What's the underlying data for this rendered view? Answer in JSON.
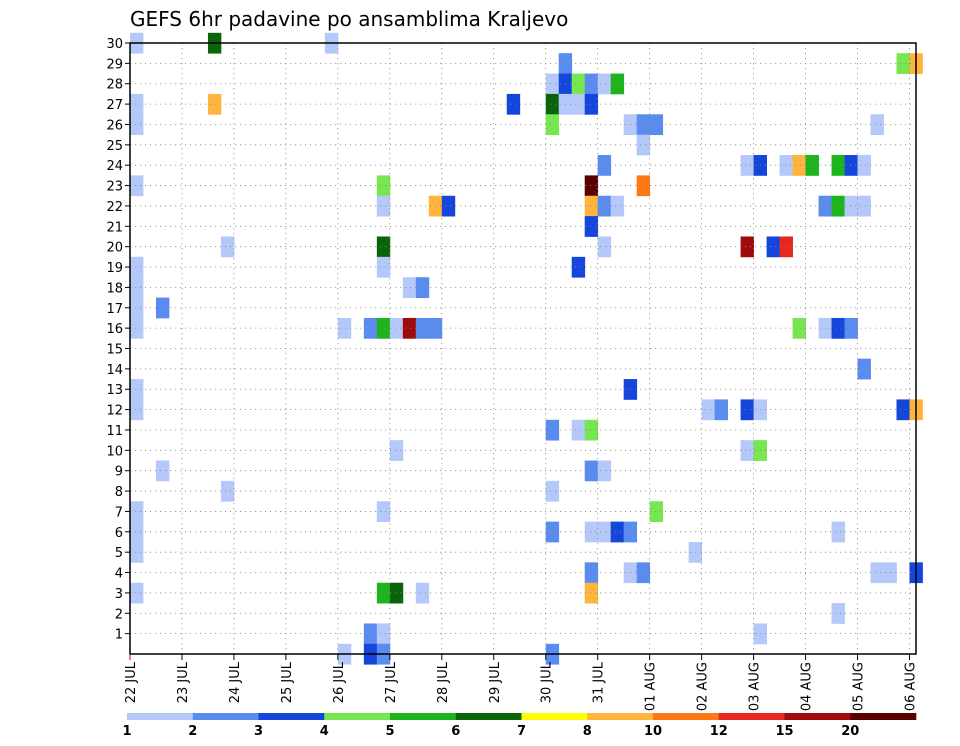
{
  "chart_data": {
    "type": "heatmap",
    "title": "GEFS 6hr padavine po ansamblima Kraljevo",
    "xlabel": "",
    "ylabel": "",
    "x_tick_labels": [
      "22 JUL",
      "23 JUL",
      "24 JUL",
      "25 JUL",
      "26 JUL",
      "27 JUL",
      "28 JUL",
      "29 JUL",
      "30 JUL",
      "31 JUL",
      "01 AUG",
      "02 AUG",
      "03 AUG",
      "04 AUG",
      "05 AUG",
      "06 AUG"
    ],
    "y_tick_labels": [
      "1",
      "2",
      "3",
      "4",
      "5",
      "6",
      "7",
      "8",
      "9",
      "10",
      "11",
      "12",
      "13",
      "14",
      "15",
      "16",
      "17",
      "18",
      "19",
      "20",
      "21",
      "22",
      "23",
      "24",
      "25",
      "26",
      "27",
      "28",
      "29",
      "30"
    ],
    "xlim_steps": [
      0,
      60
    ],
    "ylim_members": [
      0,
      30
    ],
    "legend": {
      "placement": "bottom",
      "thresholds": [
        "1",
        "2",
        "3",
        "4",
        "5",
        "6",
        "7",
        "8",
        "10",
        "12",
        "15",
        "20"
      ],
      "colors": [
        "#b4c8fa",
        "#5a8cf0",
        "#1446dc",
        "#78e650",
        "#1eb41e",
        "#0a640a",
        "#ffff00",
        "#ffb43c",
        "#ff7814",
        "#e6281e",
        "#a00a0a",
        "#5a0000"
      ]
    },
    "grid": true,
    "cells": [
      {
        "m": 30,
        "c": 0,
        "b": 0
      },
      {
        "m": 30,
        "c": 6,
        "b": 5
      },
      {
        "m": 30,
        "c": 15,
        "b": 0
      },
      {
        "m": 29,
        "c": 33,
        "b": 1
      },
      {
        "m": 29,
        "c": 59,
        "b": 3
      },
      {
        "m": 29,
        "c": 60,
        "b": 7
      },
      {
        "m": 28,
        "c": 32,
        "b": 0
      },
      {
        "m": 28,
        "c": 33,
        "b": 2
      },
      {
        "m": 28,
        "c": 34,
        "b": 3
      },
      {
        "m": 28,
        "c": 35,
        "b": 1
      },
      {
        "m": 28,
        "c": 36,
        "b": 0
      },
      {
        "m": 28,
        "c": 37,
        "b": 4
      },
      {
        "m": 27,
        "c": 0,
        "b": 0
      },
      {
        "m": 27,
        "c": 6,
        "b": 7
      },
      {
        "m": 27,
        "c": 29,
        "b": 2
      },
      {
        "m": 27,
        "c": 32,
        "b": 5
      },
      {
        "m": 27,
        "c": 33,
        "b": 0
      },
      {
        "m": 27,
        "c": 34,
        "b": 0
      },
      {
        "m": 27,
        "c": 35,
        "b": 2
      },
      {
        "m": 26,
        "c": 0,
        "b": 0
      },
      {
        "m": 26,
        "c": 32,
        "b": 3
      },
      {
        "m": 26,
        "c": 38,
        "b": 0
      },
      {
        "m": 26,
        "c": 39,
        "b": 1
      },
      {
        "m": 26,
        "c": 40,
        "b": 1
      },
      {
        "m": 26,
        "c": 57,
        "b": 0
      },
      {
        "m": 25,
        "c": 39,
        "b": 0
      },
      {
        "m": 24,
        "c": 36,
        "b": 1
      },
      {
        "m": 24,
        "c": 47,
        "b": 0
      },
      {
        "m": 24,
        "c": 48,
        "b": 2
      },
      {
        "m": 24,
        "c": 50,
        "b": 0
      },
      {
        "m": 24,
        "c": 51,
        "b": 7
      },
      {
        "m": 24,
        "c": 52,
        "b": 4
      },
      {
        "m": 24,
        "c": 54,
        "b": 4
      },
      {
        "m": 24,
        "c": 55,
        "b": 2
      },
      {
        "m": 24,
        "c": 56,
        "b": 0
      },
      {
        "m": 23,
        "c": 0,
        "b": 0
      },
      {
        "m": 23,
        "c": 19,
        "b": 3
      },
      {
        "m": 23,
        "c": 35,
        "b": 11
      },
      {
        "m": 23,
        "c": 39,
        "b": 8
      },
      {
        "m": 22,
        "c": 19,
        "b": 0
      },
      {
        "m": 22,
        "c": 23,
        "b": 7
      },
      {
        "m": 22,
        "c": 24,
        "b": 2
      },
      {
        "m": 22,
        "c": 35,
        "b": 7
      },
      {
        "m": 22,
        "c": 36,
        "b": 1
      },
      {
        "m": 22,
        "c": 37,
        "b": 0
      },
      {
        "m": 22,
        "c": 53,
        "b": 1
      },
      {
        "m": 22,
        "c": 54,
        "b": 4
      },
      {
        "m": 22,
        "c": 55,
        "b": 0
      },
      {
        "m": 22,
        "c": 56,
        "b": 0
      },
      {
        "m": 21,
        "c": 35,
        "b": 2
      },
      {
        "m": 20,
        "c": 7,
        "b": 0
      },
      {
        "m": 20,
        "c": 19,
        "b": 5
      },
      {
        "m": 20,
        "c": 36,
        "b": 0
      },
      {
        "m": 20,
        "c": 47,
        "b": 10
      },
      {
        "m": 20,
        "c": 49,
        "b": 2
      },
      {
        "m": 20,
        "c": 50,
        "b": 9
      },
      {
        "m": 19,
        "c": 0,
        "b": 0
      },
      {
        "m": 19,
        "c": 19,
        "b": 0
      },
      {
        "m": 19,
        "c": 34,
        "b": 2
      },
      {
        "m": 18,
        "c": 0,
        "b": 0
      },
      {
        "m": 18,
        "c": 21,
        "b": 0
      },
      {
        "m": 18,
        "c": 22,
        "b": 1
      },
      {
        "m": 17,
        "c": 0,
        "b": 0
      },
      {
        "m": 17,
        "c": 2,
        "b": 1
      },
      {
        "m": 16,
        "c": 0,
        "b": 0
      },
      {
        "m": 16,
        "c": 16,
        "b": 0
      },
      {
        "m": 16,
        "c": 18,
        "b": 1
      },
      {
        "m": 16,
        "c": 19,
        "b": 4
      },
      {
        "m": 16,
        "c": 20,
        "b": 0
      },
      {
        "m": 16,
        "c": 21,
        "b": 10
      },
      {
        "m": 16,
        "c": 22,
        "b": 1
      },
      {
        "m": 16,
        "c": 23,
        "b": 1
      },
      {
        "m": 16,
        "c": 51,
        "b": 3
      },
      {
        "m": 16,
        "c": 53,
        "b": 0
      },
      {
        "m": 16,
        "c": 54,
        "b": 2
      },
      {
        "m": 16,
        "c": 55,
        "b": 1
      },
      {
        "m": 14,
        "c": 56,
        "b": 1
      },
      {
        "m": 13,
        "c": 0,
        "b": 0
      },
      {
        "m": 13,
        "c": 38,
        "b": 2
      },
      {
        "m": 12,
        "c": 0,
        "b": 0
      },
      {
        "m": 12,
        "c": 44,
        "b": 0
      },
      {
        "m": 12,
        "c": 45,
        "b": 1
      },
      {
        "m": 12,
        "c": 47,
        "b": 2
      },
      {
        "m": 12,
        "c": 48,
        "b": 0
      },
      {
        "m": 12,
        "c": 59,
        "b": 2
      },
      {
        "m": 12,
        "c": 60,
        "b": 7
      },
      {
        "m": 11,
        "c": 32,
        "b": 1
      },
      {
        "m": 11,
        "c": 34,
        "b": 0
      },
      {
        "m": 11,
        "c": 35,
        "b": 3
      },
      {
        "m": 10,
        "c": 20,
        "b": 0
      },
      {
        "m": 10,
        "c": 47,
        "b": 0
      },
      {
        "m": 10,
        "c": 48,
        "b": 3
      },
      {
        "m": 9,
        "c": 2,
        "b": 0
      },
      {
        "m": 9,
        "c": 35,
        "b": 1
      },
      {
        "m": 9,
        "c": 36,
        "b": 0
      },
      {
        "m": 8,
        "c": 7,
        "b": 0
      },
      {
        "m": 8,
        "c": 32,
        "b": 0
      },
      {
        "m": 7,
        "c": 0,
        "b": 0
      },
      {
        "m": 7,
        "c": 19,
        "b": 0
      },
      {
        "m": 7,
        "c": 40,
        "b": 3
      },
      {
        "m": 6,
        "c": 0,
        "b": 0
      },
      {
        "m": 6,
        "c": 32,
        "b": 1
      },
      {
        "m": 6,
        "c": 35,
        "b": 0
      },
      {
        "m": 6,
        "c": 36,
        "b": 0
      },
      {
        "m": 6,
        "c": 37,
        "b": 2
      },
      {
        "m": 6,
        "c": 38,
        "b": 1
      },
      {
        "m": 6,
        "c": 54,
        "b": 0
      },
      {
        "m": 5,
        "c": 0,
        "b": 0
      },
      {
        "m": 5,
        "c": 43,
        "b": 0
      },
      {
        "m": 4,
        "c": 35,
        "b": 1
      },
      {
        "m": 4,
        "c": 38,
        "b": 0
      },
      {
        "m": 4,
        "c": 39,
        "b": 1
      },
      {
        "m": 4,
        "c": 57,
        "b": 0
      },
      {
        "m": 4,
        "c": 58,
        "b": 0
      },
      {
        "m": 4,
        "c": 60,
        "b": 2
      },
      {
        "m": 3,
        "c": 0,
        "b": 0
      },
      {
        "m": 3,
        "c": 19,
        "b": 4
      },
      {
        "m": 3,
        "c": 20,
        "b": 5
      },
      {
        "m": 3,
        "c": 22,
        "b": 0
      },
      {
        "m": 3,
        "c": 35,
        "b": 7
      },
      {
        "m": 2,
        "c": 54,
        "b": 0
      },
      {
        "m": 1,
        "c": 18,
        "b": 1
      },
      {
        "m": 1,
        "c": 19,
        "b": 0
      },
      {
        "m": 1,
        "c": 48,
        "b": 0
      },
      {
        "m": 0,
        "c": 16,
        "b": 0
      },
      {
        "m": 0,
        "c": 18,
        "b": 2
      },
      {
        "m": 0,
        "c": 19,
        "b": 1
      },
      {
        "m": 0,
        "c": 32,
        "b": 1
      }
    ]
  }
}
